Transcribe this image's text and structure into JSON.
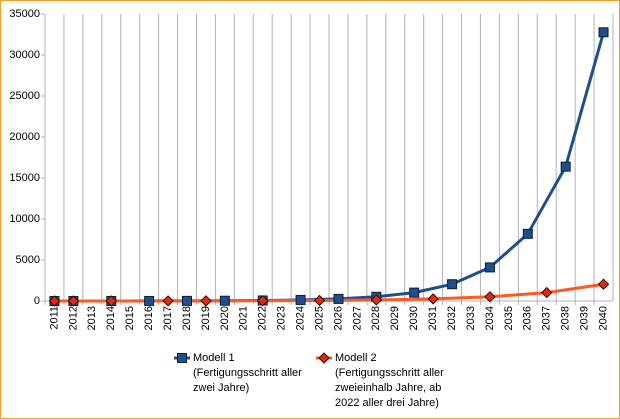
{
  "chart_data": {
    "type": "line",
    "xlim": [
      2010.5,
      2040.5
    ],
    "xticks": [
      2011,
      2012,
      2013,
      2014,
      2015,
      2016,
      2017,
      2018,
      2019,
      2020,
      2021,
      2022,
      2023,
      2024,
      2025,
      2026,
      2027,
      2028,
      2029,
      2030,
      2031,
      2032,
      2033,
      2034,
      2035,
      2036,
      2037,
      2038,
      2039,
      2040
    ],
    "ylim": [
      0,
      35000
    ],
    "yticks": [
      0,
      5000,
      10000,
      15000,
      20000,
      25000,
      30000,
      35000
    ],
    "grid": "x",
    "legend": "bottom",
    "series": [
      {
        "name": "Modell 1",
        "description_lines": [
          "(Fertigungsschritt aller",
          "zwei Jahre)"
        ],
        "color": "#1f4e8c",
        "marker": "square",
        "x": [
          2011,
          2012,
          2014,
          2016,
          2018,
          2020,
          2022,
          2024,
          2026,
          2028,
          2030,
          2032,
          2034,
          2036,
          2038,
          2040
        ],
        "values": [
          1,
          2,
          4,
          8,
          16,
          32,
          64,
          128,
          256,
          512,
          1024,
          2048,
          4096,
          8192,
          16384,
          32768
        ]
      },
      {
        "name": "Modell 2",
        "description_lines": [
          "(Fertigungsschritt aller",
          "zweieinhalb Jahre, ab",
          "2022 aller drei Jahre)"
        ],
        "color": "#ff5a1f",
        "marker": "diamond",
        "x": [
          2011,
          2012,
          2014,
          2017,
          2019,
          2022,
          2025,
          2028,
          2031,
          2034,
          2037,
          2040
        ],
        "values": [
          1,
          2,
          4,
          8,
          16,
          32,
          64,
          128,
          256,
          512,
          1024,
          2048
        ]
      }
    ]
  }
}
